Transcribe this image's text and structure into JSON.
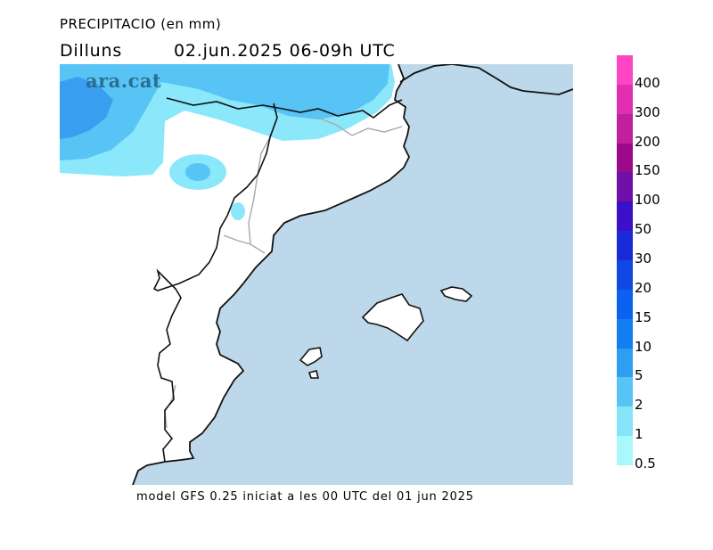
{
  "header": {
    "title": "PRECIPITACIO (en mm)",
    "day": "Dilluns",
    "date_range": "02.jun.2025 06-09h UTC"
  },
  "logo_text": "ara.cat",
  "footer": "model GFS 0.25 iniciat a les 00 UTC del 01 jun 2025",
  "legend": {
    "items": [
      {
        "label": "400",
        "color": "#ff44c4"
      },
      {
        "label": "300",
        "color": "#e030b0"
      },
      {
        "label": "200",
        "color": "#c0209c"
      },
      {
        "label": "150",
        "color": "#9c0a8c"
      },
      {
        "label": "100",
        "color": "#7010a8"
      },
      {
        "label": "50",
        "color": "#3a10c8"
      },
      {
        "label": "30",
        "color": "#1a2ad8"
      },
      {
        "label": "20",
        "color": "#1048e4"
      },
      {
        "label": "15",
        "color": "#0c62f0"
      },
      {
        "label": "10",
        "color": "#127ef0"
      },
      {
        "label": "5",
        "color": "#2e9ef2"
      },
      {
        "label": "2",
        "color": "#58c4f6"
      },
      {
        "label": "1",
        "color": "#86e4f8"
      },
      {
        "label": "0.5",
        "color": "#a8f8fc"
      }
    ]
  },
  "map": {
    "sea_color": "#bcd8ea",
    "land_color": "#ffffff",
    "coast_color": "#111111",
    "border_color": "#a8a8a8",
    "precip_light": "#8ae8fa",
    "precip_mid": "#58c4f6",
    "precip_heavy": "#3a9ef0"
  }
}
